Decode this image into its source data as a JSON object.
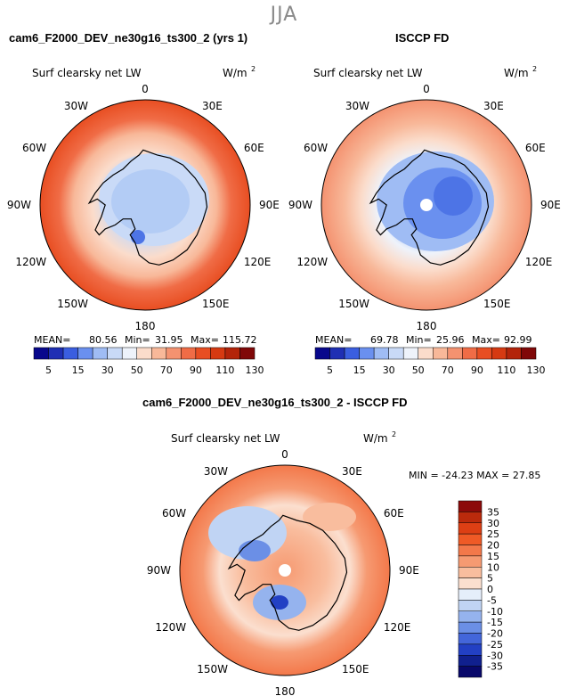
{
  "season": "JJA",
  "chart_data": [
    {
      "type": "heatmap",
      "projection": "south-polar-stereographic",
      "title": "cam6_F2000_DEV_ne30g16_ts300_2 (yrs 1)",
      "variable": "Surf clearsky net LW",
      "units_prefix": "W/m",
      "units_exp": "2",
      "lon_labels": [
        "0",
        "30E",
        "60E",
        "90E",
        "120E",
        "150E",
        "180",
        "150W",
        "120W",
        "90W",
        "60W",
        "30W"
      ],
      "stats": {
        "mean_label": "MEAN=",
        "mean": "80.56",
        "min_label": "Min=",
        "min": "31.95",
        "max_label": "Max=",
        "max": "115.72"
      },
      "colorbar": {
        "levels": [
          "5",
          "15",
          "30",
          "50",
          "70",
          "90",
          "110",
          "130"
        ],
        "colors": [
          "#08088c",
          "#1f2fb4",
          "#3a5ee0",
          "#6a90ef",
          "#9fbcf4",
          "#c9daf7",
          "#eef3fb",
          "#fbdccb",
          "#f8b899",
          "#f49270",
          "#f06c46",
          "#e84e22",
          "#d63a12",
          "#b3240a",
          "#800808"
        ]
      }
    },
    {
      "type": "heatmap",
      "projection": "south-polar-stereographic",
      "title": "ISCCP FD",
      "variable": "Surf clearsky net LW",
      "units_prefix": "W/m",
      "units_exp": "2",
      "lon_labels": [
        "0",
        "30E",
        "60E",
        "90E",
        "120E",
        "150E",
        "180",
        "150W",
        "120W",
        "90W",
        "60W",
        "30W"
      ],
      "stats": {
        "mean_label": "MEAN=",
        "mean": "69.78",
        "min_label": "Min=",
        "min": "25.96",
        "max_label": "Max=",
        "max": "92.99"
      },
      "colorbar": {
        "levels": [
          "5",
          "15",
          "30",
          "50",
          "70",
          "90",
          "110",
          "130"
        ],
        "colors": [
          "#08088c",
          "#1f2fb4",
          "#3a5ee0",
          "#6a90ef",
          "#9fbcf4",
          "#c9daf7",
          "#eef3fb",
          "#fbdccb",
          "#f8b899",
          "#f49270",
          "#f06c46",
          "#e84e22",
          "#d63a12",
          "#b3240a",
          "#800808"
        ]
      }
    },
    {
      "type": "heatmap",
      "projection": "south-polar-stereographic",
      "title": "cam6_F2000_DEV_ne30g16_ts300_2 - ISCCP FD",
      "variable": "Surf clearsky net LW",
      "units_prefix": "W/m",
      "units_exp": "2",
      "lon_labels": [
        "0",
        "30E",
        "60E",
        "90E",
        "120E",
        "150E",
        "180",
        "150W",
        "120W",
        "90W",
        "60W",
        "30W"
      ],
      "stats_line": "MIN = -24.23 MAX =  27.85",
      "stats": {
        "min": "-24.23",
        "max": "27.85"
      },
      "colorbar": {
        "levels": [
          "35",
          "30",
          "25",
          "20",
          "15",
          "10",
          "5",
          "0",
          "-5",
          "-10",
          "-15",
          "-20",
          "-25",
          "-30",
          "-35"
        ],
        "colors": [
          "#8c0a0a",
          "#bb2a0c",
          "#dd3f14",
          "#ef5a26",
          "#f3784a",
          "#f69a72",
          "#f9bd9e",
          "#fbdfcf",
          "#e5eefa",
          "#c0d4f4",
          "#95b3ee",
          "#6b8fe6",
          "#4366da",
          "#2240c4",
          "#10208e",
          "#08086a"
        ]
      }
    }
  ]
}
